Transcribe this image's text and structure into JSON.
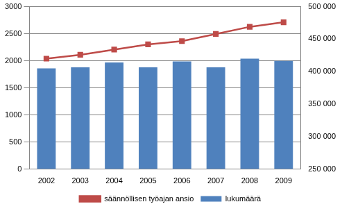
{
  "chart_data": {
    "type": "bar",
    "categories": [
      "2002",
      "2003",
      "2004",
      "2005",
      "2006",
      "2007",
      "2008",
      "2009"
    ],
    "series": [
      {
        "name": "lukumäärä",
        "type": "bar",
        "color": "#4f81bd",
        "values": [
          1860,
          1880,
          1970,
          1880,
          1990,
          1880,
          2040,
          2000
        ]
      },
      {
        "name": "säännöllisen työajan ansio",
        "type": "line",
        "axis": "y2",
        "color": "#be4b48",
        "marker": "square",
        "values": [
          420000,
          426000,
          434000,
          442000,
          447000,
          458000,
          469000,
          476000
        ]
      }
    ],
    "ylim": [
      0,
      3000
    ],
    "yticks": [
      0,
      500,
      1000,
      1500,
      2000,
      2500,
      3000
    ],
    "y2lim": [
      250000,
      500000
    ],
    "y2ticks": [
      {
        "value": 250000,
        "label": "250 000"
      },
      {
        "value": 300000,
        "label": "300 000"
      },
      {
        "value": 350000,
        "label": "350 000"
      },
      {
        "value": 400000,
        "label": "400 000"
      },
      {
        "value": 450000,
        "label": "450 000"
      },
      {
        "value": 500000,
        "label": "500 000"
      }
    ],
    "grid": true,
    "legend": "bottom"
  }
}
